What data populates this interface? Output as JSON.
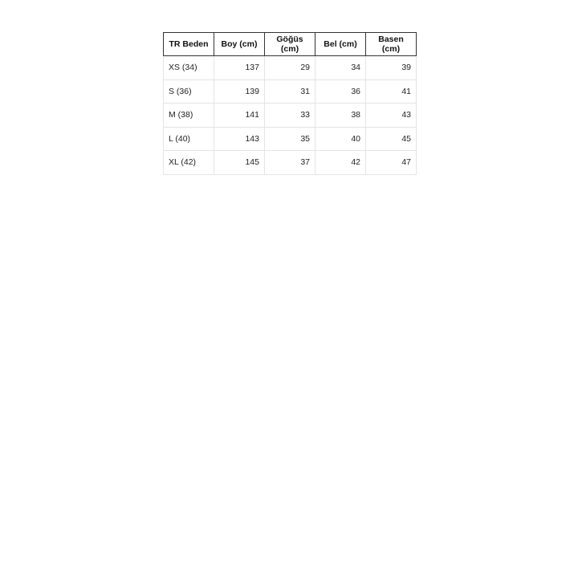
{
  "table": {
    "headers": [
      "TR Beden",
      "Boy (cm)",
      "Göğüs (cm)",
      "Bel (cm)",
      "Basen (cm)"
    ],
    "rows": [
      [
        "XS (34)",
        "137",
        "29",
        "34",
        "39"
      ],
      [
        "S (36)",
        "139",
        "31",
        "36",
        "41"
      ],
      [
        "M (38)",
        "141",
        "33",
        "38",
        "43"
      ],
      [
        "L (40)",
        "143",
        "35",
        "40",
        "45"
      ],
      [
        "XL (42)",
        "145",
        "37",
        "42",
        "47"
      ]
    ]
  }
}
